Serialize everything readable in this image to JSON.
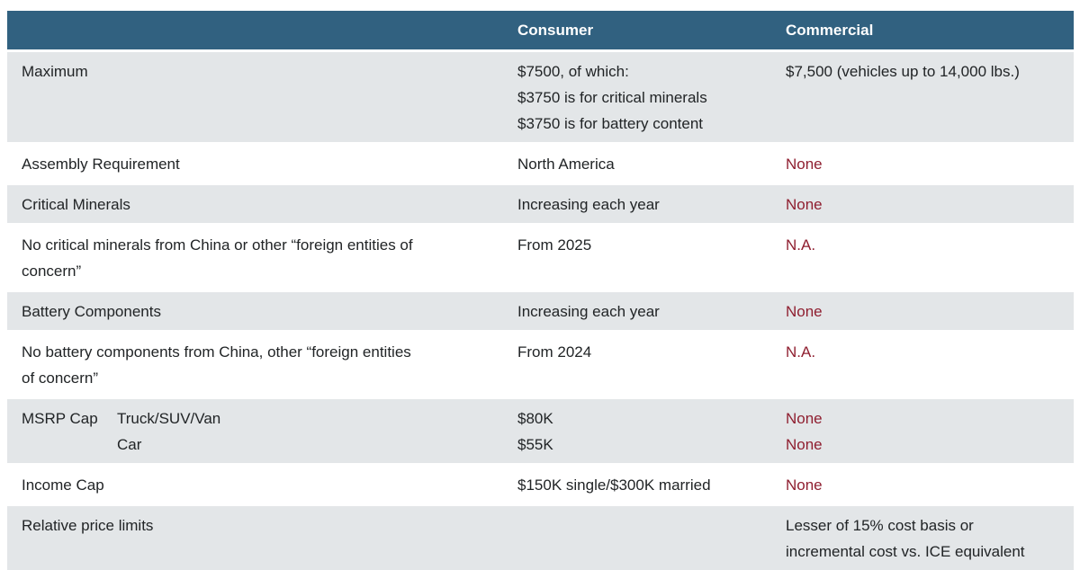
{
  "chart_data": {
    "type": "table",
    "columns": [
      "",
      "Consumer",
      "Commercial"
    ],
    "rows": [
      [
        "Maximum",
        "$7500, of which: $3750 is for critical minerals $3750 is for battery content",
        "$7,500 (vehicles up to 14,000 lbs.)"
      ],
      [
        "Assembly Requirement",
        "North America",
        "None"
      ],
      [
        "Critical Minerals",
        "Increasing each year",
        "None"
      ],
      [
        "No critical minerals from China or other “foreign entities of concern”",
        "From 2025",
        "N.A."
      ],
      [
        "Battery Components",
        "Increasing each year",
        "None"
      ],
      [
        "No battery components from China, other “foreign entities of concern”",
        "From 2024",
        "N.A."
      ],
      [
        "MSRP Cap — Truck/SUV/Van; Car",
        "$80K; $55K",
        "None; None"
      ],
      [
        "Income Cap",
        "$150K single/$300K married",
        "None"
      ],
      [
        "Relative price limits",
        "",
        "Lesser of 15% cost basis or incremental cost vs. ICE equivalent"
      ]
    ],
    "layout": "alternating shaded rows, dark blue header band, negative values in dark red"
  },
  "table": {
    "header": {
      "consumer": "Consumer",
      "commercial": "Commercial"
    },
    "rows": {
      "maximum": {
        "label": "Maximum",
        "consumer_lines": [
          "$7500, of which:",
          "$3750 is for critical minerals",
          "$3750 is for battery content"
        ],
        "commercial": "$7,500 (vehicles up to 14,000 lbs.)"
      },
      "assembly": {
        "label": "Assembly Requirement",
        "consumer": "North America",
        "commercial": "None"
      },
      "critical_minerals": {
        "label": "Critical Minerals",
        "consumer": "Increasing each year",
        "commercial": "None"
      },
      "no_critical_minerals": {
        "label_lines": [
          "No critical minerals from China or other “foreign entities of",
          "concern”"
        ],
        "consumer": "From 2025",
        "commercial": "N.A."
      },
      "battery_components": {
        "label": "Battery Components",
        "consumer": "Increasing each year",
        "commercial": "None"
      },
      "no_battery_components": {
        "label_lines": [
          "No battery components from China, other “foreign entities",
          "of concern”"
        ],
        "consumer": "From 2024",
        "commercial": "N.A."
      },
      "msrp_cap": {
        "label": "MSRP Cap",
        "sub_labels": [
          "Truck/SUV/Van",
          "Car"
        ],
        "consumer_lines": [
          "$80K",
          "$55K"
        ],
        "commercial_lines": [
          "None",
          "None"
        ]
      },
      "income_cap": {
        "label": "Income Cap",
        "consumer": "$150K single/$300K married",
        "commercial": "None"
      },
      "relative_price_limits": {
        "label": "Relative price limits",
        "consumer": "",
        "commercial_lines": [
          "Lesser of 15% cost basis or",
          "incremental cost vs. ICE equivalent"
        ]
      }
    }
  },
  "colors": {
    "header_bg": "#316180",
    "header_text": "#ffffff",
    "row_alt_bg": "#e3e6e8",
    "accent_red": "#8f1f30",
    "text": "#212426",
    "page_bg": "#ffffff"
  }
}
